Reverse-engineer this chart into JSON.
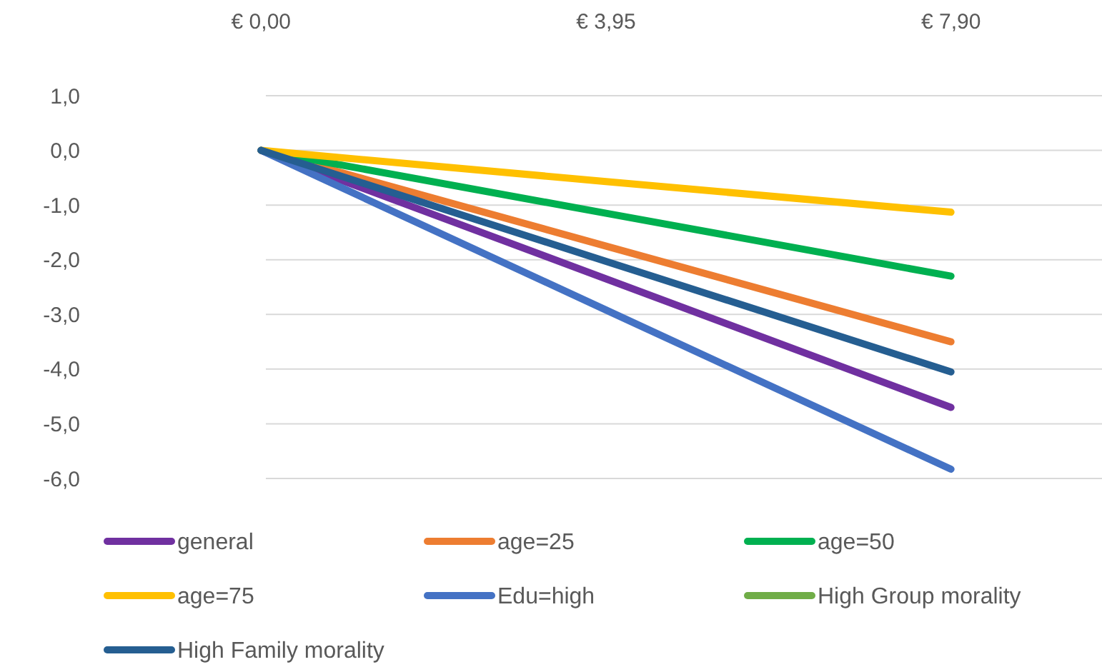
{
  "chart_data": {
    "type": "line",
    "categories": [
      "€ 0,00",
      "€ 3,95",
      "€ 7,90"
    ],
    "series": [
      {
        "name": "general",
        "color": "#7030a0",
        "values": [
          0,
          -2.35,
          -4.7
        ]
      },
      {
        "name": "age=25",
        "color": "#ed7d31",
        "values": [
          0,
          -1.75,
          -3.5
        ]
      },
      {
        "name": "age=50",
        "color": "#00b050",
        "values": [
          0,
          -1.15,
          -2.3
        ]
      },
      {
        "name": "age=75",
        "color": "#ffc000",
        "values": [
          0,
          -0.57,
          -1.13
        ]
      },
      {
        "name": "Edu=high",
        "color": "#4472c4",
        "values": [
          0,
          -2.92,
          -5.83
        ]
      },
      {
        "name": "High Group morality",
        "color": "#70ad47",
        "values": [
          null,
          null,
          null
        ]
      },
      {
        "name": "High Family morality",
        "color": "#255e91",
        "values": [
          0,
          -2.03,
          -4.05
        ]
      }
    ],
    "ylim": [
      -6,
      1
    ],
    "yticks": [
      {
        "value": 1,
        "label": "1,0"
      },
      {
        "value": 0,
        "label": "0,0"
      },
      {
        "value": -1,
        "label": "-1,0"
      },
      {
        "value": -2,
        "label": "-2,0"
      },
      {
        "value": -3,
        "label": "-3,0"
      },
      {
        "value": -4,
        "label": "-4,0"
      },
      {
        "value": -5,
        "label": "-5,0"
      },
      {
        "value": -6,
        "label": "-6,0"
      }
    ],
    "grid": "y",
    "legend": "bottom",
    "marker": "none",
    "line_style": "solid"
  }
}
